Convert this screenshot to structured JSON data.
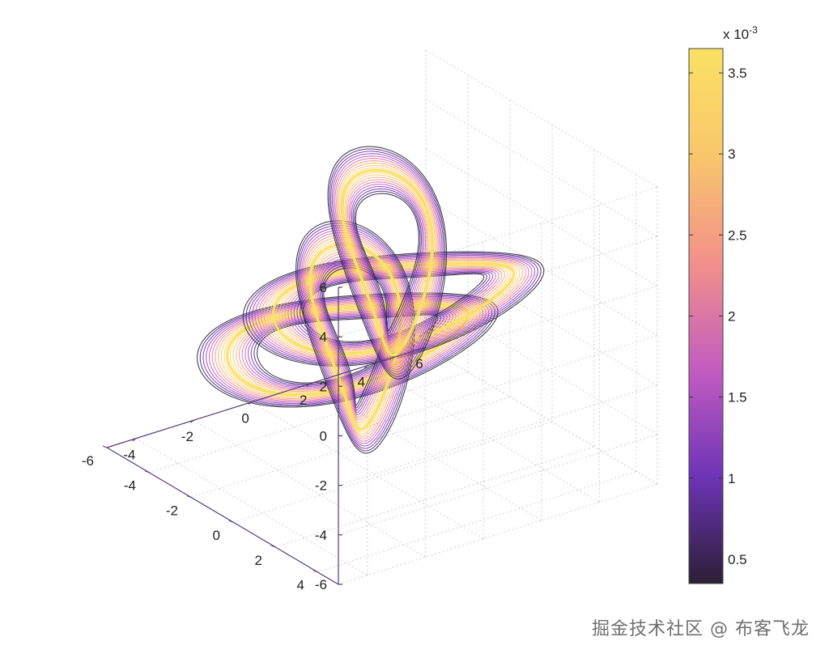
{
  "chart_data": {
    "type": "contour3d",
    "axes": {
      "x": {
        "ticks": [
          "-4",
          "-2",
          "0",
          "2",
          "4",
          "6"
        ],
        "range": [
          -5,
          6
        ]
      },
      "y": {
        "ticks": [
          "4",
          "2",
          "0",
          "-2",
          "-4",
          "-6"
        ],
        "range": [
          -6,
          5
        ]
      },
      "z": {
        "ticks": [
          "6",
          "4",
          "2",
          "0",
          "-2",
          "-4",
          "-6"
        ],
        "range": [
          -6,
          6
        ]
      }
    },
    "grid": true,
    "colorbar": {
      "exponent_base": "x 10",
      "exponent": "-3",
      "ticks": [
        "3.5",
        "3",
        "2.5",
        "2",
        "1.5",
        "1",
        "0.5"
      ],
      "range": [
        0.35,
        3.65
      ],
      "colors": [
        "#2b1f35",
        "#6d34b7",
        "#c35cc0",
        "#f2918a",
        "#f8c66b",
        "#fbe163"
      ]
    },
    "tubes": [
      {
        "name": "horizontal-loop-left",
        "center": [
          -1.2,
          0.2,
          0.0
        ],
        "radius_a": 3.8,
        "radius_b": 2.3,
        "plane": "xy"
      },
      {
        "name": "horizontal-loop-right",
        "center": [
          1.4,
          -1.2,
          0.0
        ],
        "radius_a": 3.8,
        "radius_b": 2.3,
        "plane": "xy"
      },
      {
        "name": "vertical-loop-left",
        "center": [
          -0.5,
          -0.4,
          -0.3
        ],
        "radius_a": 3.6,
        "radius_b": 1.9,
        "plane": "yz"
      },
      {
        "name": "vertical-loop-right",
        "center": [
          2.2,
          -2.6,
          0.6
        ],
        "radius_a": 3.6,
        "radius_b": 1.9,
        "plane": "yz"
      }
    ]
  },
  "watermark": "掘金技术社区 @ 布客飞龙"
}
